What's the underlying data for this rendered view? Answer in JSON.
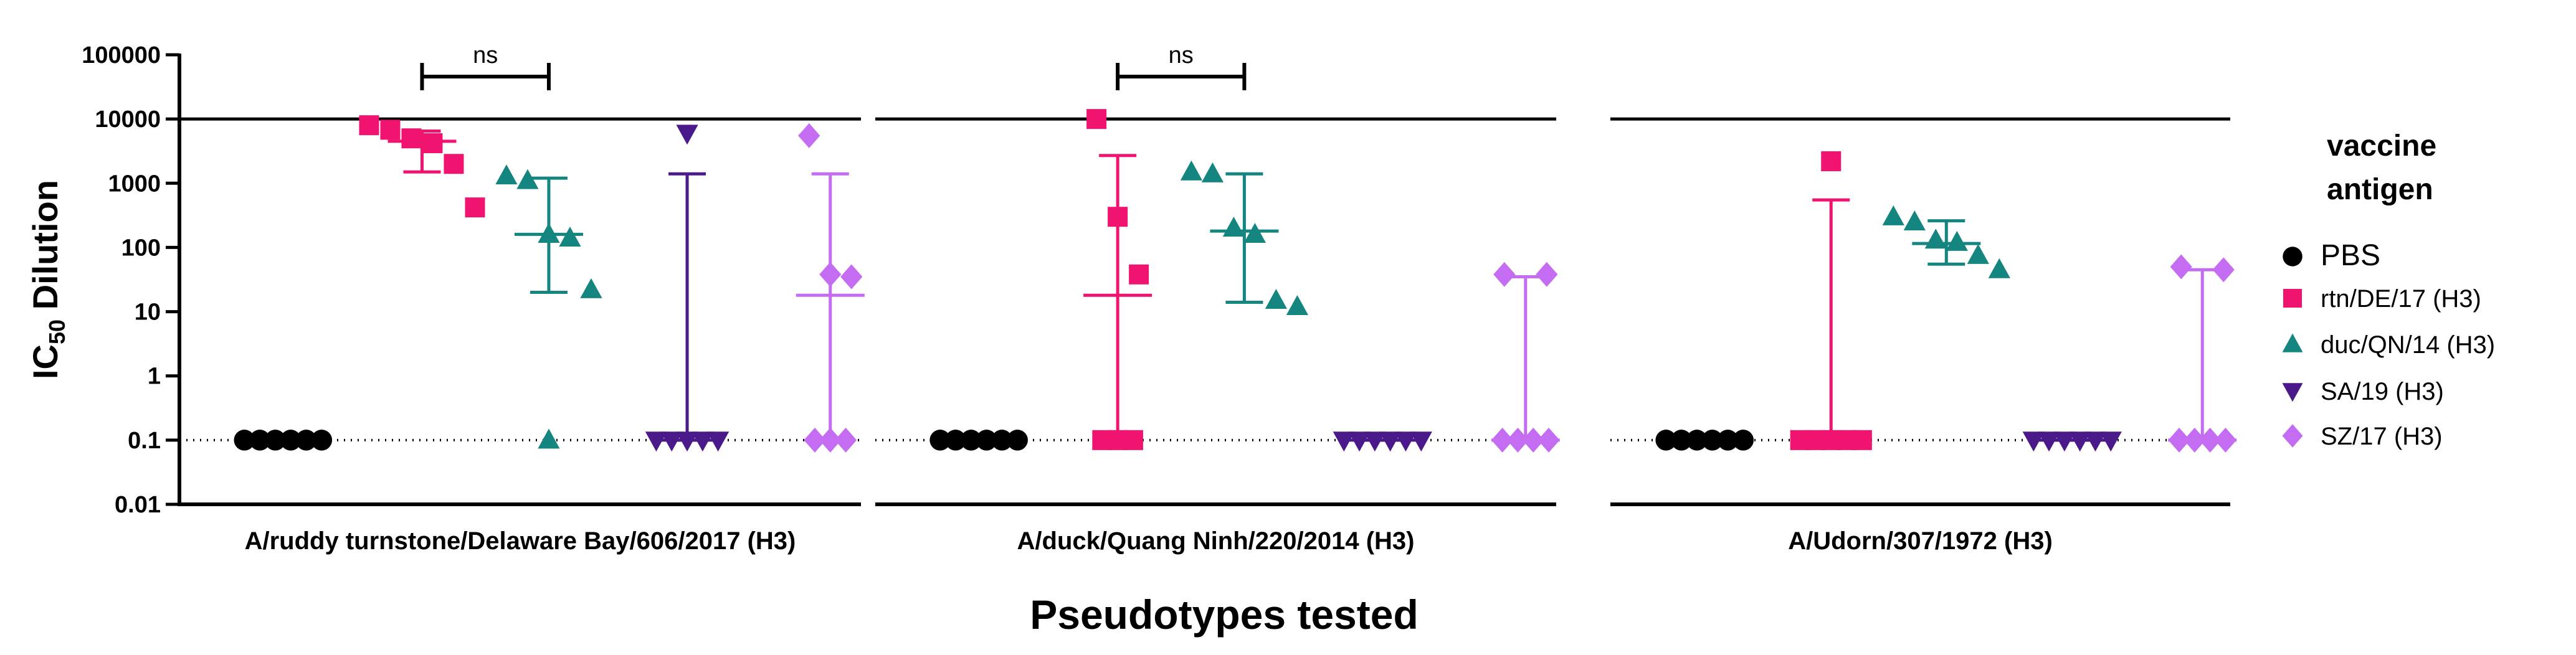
{
  "chart_data": {
    "type": "scatter",
    "yscale": "log",
    "ylim": [
      0.01,
      100000
    ],
    "ylabel_main": "IC",
    "ylabel_sub": "50",
    "ylabel_tail": " Dilution",
    "xlabel": "Pseudotypes tested",
    "y_ticks": [
      {
        "v": 100000,
        "label": "100000"
      },
      {
        "v": 10000,
        "label": "10000"
      },
      {
        "v": 1000,
        "label": "1000"
      },
      {
        "v": 100,
        "label": "100"
      },
      {
        "v": 10,
        "label": "10"
      },
      {
        "v": 1,
        "label": "1"
      },
      {
        "v": 0.1,
        "label": "0.1"
      },
      {
        "v": 0.01,
        "label": "0.01"
      }
    ],
    "upper_limit": 10000,
    "lower_limit": 0.1,
    "colors": {
      "PBS": "#000000",
      "rtn/DE/17 (H3)": "#f0136f",
      "duc/QN/14 (H3)": "#14857f",
      "SA/19 (H3)": "#4b1a8a",
      "SZ/17 (H3)": "#c46df2"
    },
    "markers": {
      "PBS": "circle",
      "rtn/DE/17 (H3)": "square",
      "duc/QN/14 (H3)": "triangle-up",
      "SA/19 (H3)": "triangle-down",
      "SZ/17 (H3)": "diamond"
    },
    "legend": {
      "title_line1": "vaccine",
      "title_line2": "antigen",
      "entries": [
        "PBS",
        "rtn/DE/17 (H3)",
        "duc/QN/14 (H3)",
        "SA/19 (H3)",
        "SZ/17 (H3)"
      ],
      "position": "right"
    },
    "panels": [
      {
        "title": "A/ruddy turnstone/Delaware Bay/606/2017 (H3)",
        "significance": {
          "label": "ns",
          "between": [
            "rtn/DE/17 (H3)",
            "duc/QN/14 (H3)"
          ]
        },
        "groups": [
          {
            "name": "PBS",
            "values": [
              0.1,
              0.1,
              0.1,
              0.1,
              0.1,
              0.1
            ],
            "stats": null
          },
          {
            "name": "rtn/DE/17 (H3)",
            "values": [
              8000,
              6800,
              5000,
              4200,
              2000,
              420
            ],
            "stats": {
              "center": 4500,
              "low": 1500,
              "high": 6500
            }
          },
          {
            "name": "duc/QN/14 (H3)",
            "values": [
              1300,
              1100,
              160,
              140,
              22,
              0.1
            ],
            "stats": {
              "center": 160,
              "low": 20,
              "high": 1200
            }
          },
          {
            "name": "SA/19 (H3)",
            "values": [
              6000,
              0.1,
              0.1,
              0.1,
              0.1,
              0.1
            ],
            "stats": {
              "center": 0.1,
              "low": 0.1,
              "high": 1400
            }
          },
          {
            "name": "SZ/17 (H3)",
            "values": [
              5500,
              38,
              35,
              0.1,
              0.1,
              0.1
            ],
            "stats": {
              "center": 18,
              "low": 0.1,
              "high": 1400
            }
          }
        ]
      },
      {
        "title": "A/duck/Quang Ninh/220/2014 (H3)",
        "significance": {
          "label": "ns",
          "between": [
            "rtn/DE/17 (H3)",
            "duc/QN/14 (H3)"
          ]
        },
        "groups": [
          {
            "name": "PBS",
            "values": [
              0.1,
              0.1,
              0.1,
              0.1,
              0.1,
              0.1
            ],
            "stats": null
          },
          {
            "name": "rtn/DE/17 (H3)",
            "values": [
              10000,
              300,
              38,
              0.1,
              0.1,
              0.1
            ],
            "stats": {
              "center": 18,
              "low": 0.1,
              "high": 2700
            }
          },
          {
            "name": "duc/QN/14 (H3)",
            "values": [
              1500,
              1400,
              200,
              160,
              15,
              12
            ],
            "stats": {
              "center": 180,
              "low": 14,
              "high": 1400
            }
          },
          {
            "name": "SA/19 (H3)",
            "values": [
              0.1,
              0.1,
              0.1,
              0.1,
              0.1,
              0.1
            ],
            "stats": {
              "center": 0.1,
              "low": 0.1,
              "high": 0.1
            }
          },
          {
            "name": "SZ/17 (H3)",
            "values": [
              38,
              38,
              0.1,
              0.1,
              0.1,
              0.1
            ],
            "stats": {
              "center": 0.1,
              "low": 0.1,
              "high": 35
            }
          }
        ]
      },
      {
        "title": "A/Udorn/307/1972 (H3)",
        "significance": null,
        "groups": [
          {
            "name": "PBS",
            "values": [
              0.1,
              0.1,
              0.1,
              0.1,
              0.1,
              0.1
            ],
            "stats": null
          },
          {
            "name": "rtn/DE/17 (H3)",
            "values": [
              2200,
              0.1,
              0.1,
              0.1,
              0.1,
              0.1
            ],
            "stats": {
              "center": 0.1,
              "low": 0.1,
              "high": 550
            }
          },
          {
            "name": "duc/QN/14 (H3)",
            "values": [
              300,
              250,
              130,
              120,
              75,
              45
            ],
            "stats": {
              "center": 115,
              "low": 55,
              "high": 260
            }
          },
          {
            "name": "SA/19 (H3)",
            "values": [
              0.1,
              0.1,
              0.1,
              0.1,
              0.1,
              0.1
            ],
            "stats": {
              "center": 0.1,
              "low": 0.1,
              "high": 0.1
            }
          },
          {
            "name": "SZ/17 (H3)",
            "values": [
              50,
              45,
              0.1,
              0.1,
              0.1,
              0.1
            ],
            "stats": {
              "center": 0.1,
              "low": 0.1,
              "high": 45
            }
          }
        ]
      }
    ]
  }
}
